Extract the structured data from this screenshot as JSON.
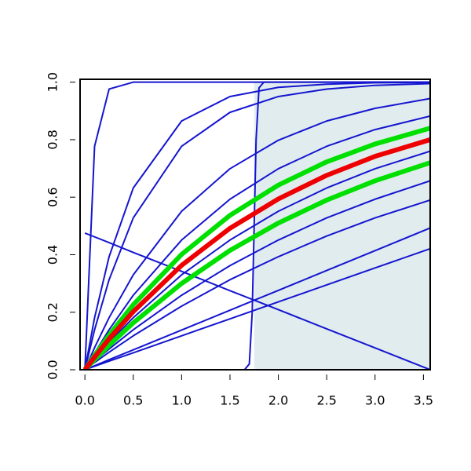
{
  "chart_data": {
    "type": "line",
    "x": [
      0,
      0.1,
      0.25,
      0.5,
      1,
      1.5,
      2,
      2.5,
      3,
      3.57
    ],
    "xlim": [
      -0.05,
      3.57
    ],
    "ylim": [
      0,
      1.01
    ],
    "xticks": [
      {
        "value": 0,
        "label": "0.0"
      },
      {
        "value": 0.5,
        "label": "0.5"
      },
      {
        "value": 1,
        "label": "1.0"
      },
      {
        "value": 1.5,
        "label": "1.5"
      },
      {
        "value": 2,
        "label": "2.0"
      },
      {
        "value": 2.5,
        "label": "2.5"
      },
      {
        "value": 3,
        "label": "3.0"
      },
      {
        "value": 3.5,
        "label": "3.5"
      }
    ],
    "yticks": [
      {
        "value": 0,
        "label": "0.0"
      },
      {
        "value": 0.2,
        "label": "0.2"
      },
      {
        "value": 0.4,
        "label": "0.4"
      },
      {
        "value": 0.6,
        "label": "0.6"
      },
      {
        "value": 0.8,
        "label": "0.8"
      },
      {
        "value": 1,
        "label": "1.0"
      }
    ],
    "shaded_region": {
      "x": [
        1.75,
        3.57
      ],
      "y": [
        0,
        1
      ],
      "color": "#e0ecee"
    },
    "series": [
      {
        "color": "#1515d0",
        "width": 2,
        "values": [
          0,
          0.777,
          0.976,
          1,
          1,
          1,
          1,
          1,
          1,
          1
        ]
      },
      {
        "color": "#1515d0",
        "width": 2,
        "values": [
          0,
          0.181,
          0.393,
          0.632,
          0.865,
          0.95,
          0.982,
          0.993,
          0.998,
          0.999
        ]
      },
      {
        "color": "#1515d0",
        "width": 2,
        "values": [
          0,
          0.139,
          0.313,
          0.528,
          0.777,
          0.895,
          0.95,
          0.976,
          0.989,
          0.995
        ]
      },
      {
        "color": "#1515d0",
        "width": 2,
        "values": [
          0,
          0.077,
          0.181,
          0.33,
          0.551,
          0.699,
          0.798,
          0.865,
          0.909,
          0.943
        ]
      },
      {
        "color": "#1515d0",
        "width": 2,
        "values": [
          0,
          0.058,
          0.139,
          0.259,
          0.451,
          0.593,
          0.699,
          0.777,
          0.835,
          0.882
        ]
      },
      {
        "color": "#1515d0",
        "width": 2,
        "values": [
          0,
          0.039,
          0.095,
          0.181,
          0.33,
          0.451,
          0.551,
          0.632,
          0.699,
          0.76
        ]
      },
      {
        "color": "#1515d0",
        "width": 2,
        "values": [
          0,
          0.03,
          0.072,
          0.139,
          0.259,
          0.362,
          0.451,
          0.528,
          0.593,
          0.657
        ]
      },
      {
        "color": "#1515d0",
        "width": 2,
        "values": [
          0,
          0.025,
          0.061,
          0.118,
          0.221,
          0.313,
          0.393,
          0.465,
          0.528,
          0.59
        ]
      },
      {
        "color": "#1515d0",
        "width": 2,
        "values": [
          0,
          0.014,
          0.035,
          0.069,
          0.138,
          0.207,
          0.276,
          0.345,
          0.414,
          0.493
        ]
      },
      {
        "color": "#1515d0",
        "width": 2,
        "values": [
          0,
          0.012,
          0.03,
          0.059,
          0.118,
          0.177,
          0.236,
          0.295,
          0.354,
          0.421
        ]
      },
      {
        "color": "#1515d0",
        "width": 2,
        "values": [
          0.475,
          0.462,
          0.442,
          0.408,
          0.342,
          0.275,
          0.209,
          0.142,
          0.076,
          0
        ]
      },
      {
        "color": "#1515d0",
        "width": 2,
        "x": [
          0,
          1.65,
          1.7,
          1.73,
          1.75,
          1.77,
          1.8,
          1.85,
          3.57
        ],
        "values": [
          0,
          0,
          0.02,
          0.2,
          0.5,
          0.8,
          0.98,
          1,
          1
        ]
      },
      {
        "color": "#00e000",
        "width": 6,
        "values": [
          0,
          0.05,
          0.12,
          0.226,
          0.401,
          0.537,
          0.642,
          0.723,
          0.785,
          0.84
        ]
      },
      {
        "color": "#00e000",
        "width": 6,
        "values": [
          0,
          0.035,
          0.085,
          0.163,
          0.3,
          0.415,
          0.51,
          0.59,
          0.657,
          0.72
        ]
      },
      {
        "color": "#ee0000",
        "width": 6,
        "values": [
          0,
          0.044,
          0.107,
          0.202,
          0.363,
          0.492,
          0.594,
          0.676,
          0.742,
          0.8
        ]
      }
    ]
  }
}
